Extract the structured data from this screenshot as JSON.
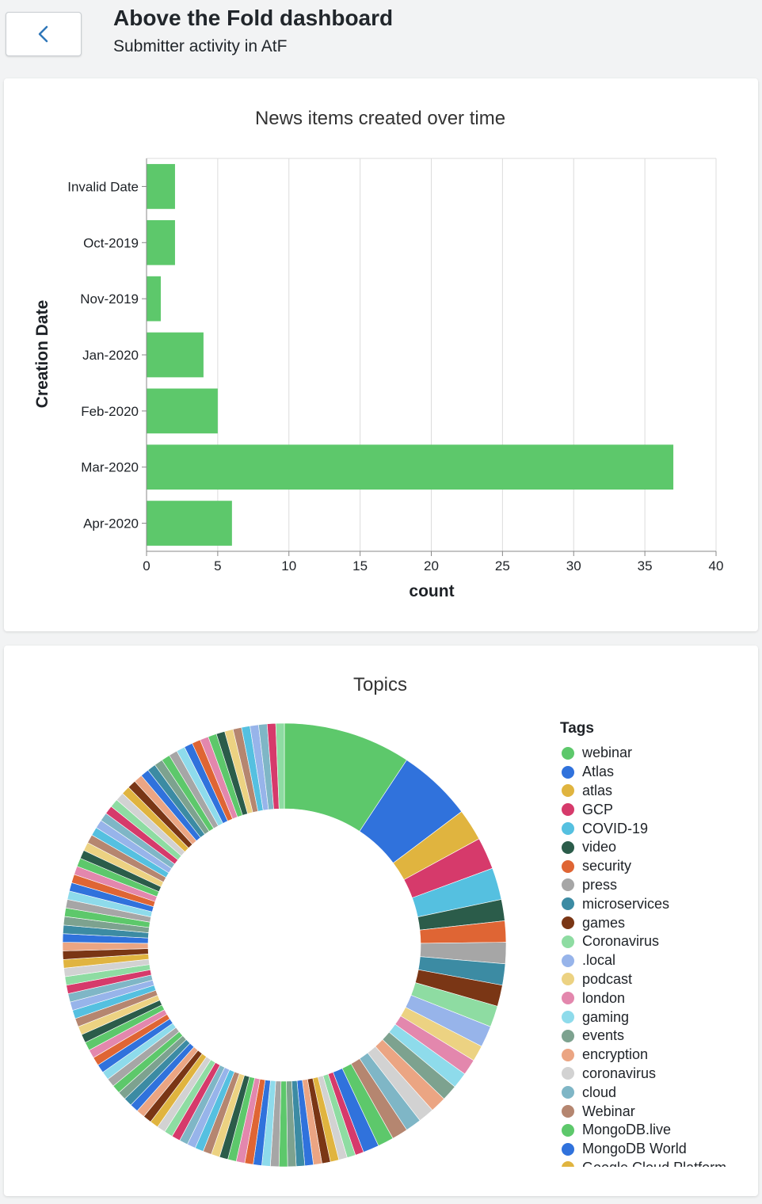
{
  "header": {
    "back_icon": "chevron-left-icon",
    "title": "Above the Fold dashboard",
    "subtitle": "Submitter activity in AtF"
  },
  "colors": {
    "bar": "#5dc86b",
    "chevron": "#2f77b9"
  },
  "bar_chart": {
    "chart_data": {
      "type": "bar",
      "orientation": "horizontal",
      "title": "News items created over time",
      "xlabel": "count",
      "ylabel": "Creation Date",
      "categories": [
        "Invalid Date",
        "Oct-2019",
        "Nov-2019",
        "Jan-2020",
        "Feb-2020",
        "Mar-2020",
        "Apr-2020"
      ],
      "values": [
        2,
        2,
        1,
        4,
        5,
        37,
        6
      ],
      "xlim": [
        0,
        40
      ],
      "x_ticks": [
        "0",
        "5",
        "10",
        "15",
        "20",
        "25",
        "30",
        "35",
        "40"
      ],
      "grid": true
    }
  },
  "pie_chart": {
    "chart_data": {
      "type": "pie",
      "style": "donut",
      "title": "Topics",
      "legend_title": "Tags",
      "legend_position": "right",
      "labels": [
        "webinar",
        "Atlas",
        "atlas",
        "GCP",
        "COVID-19",
        "video",
        "security",
        "press",
        "microservices",
        "games",
        "Coronavirus",
        ".local",
        "podcast",
        "london",
        "gaming",
        "events",
        "encryption",
        "coronavirus",
        "cloud",
        "Webinar",
        "MongoDB.live",
        "MongoDB World"
      ],
      "values": [
        12,
        7,
        3,
        3,
        3,
        2,
        2,
        2,
        2,
        2,
        2,
        2,
        1.5,
        1.5,
        1.5,
        1.5,
        1.5,
        1.5,
        1.5,
        1.5,
        1.5,
        1.5
      ],
      "other_slices": 90,
      "other_slice_value": 0.8,
      "colors": [
        "#5dc86b",
        "#3072dc",
        "#e0b43f",
        "#d63a6b",
        "#55c0e0",
        "#2b5c4a",
        "#df6534",
        "#a6a6a6",
        "#3c8ba3",
        "#7a3615",
        "#8edca2",
        "#97b4ea",
        "#ecd282",
        "#e387ad",
        "#8edbeb",
        "#7da28f",
        "#eba583",
        "#d2d2d2",
        "#7fb6c6",
        "#b58670",
        "#5dc86b",
        "#3072dc"
      ],
      "legend_cutoff_item": "Google Cloud Platform"
    }
  }
}
